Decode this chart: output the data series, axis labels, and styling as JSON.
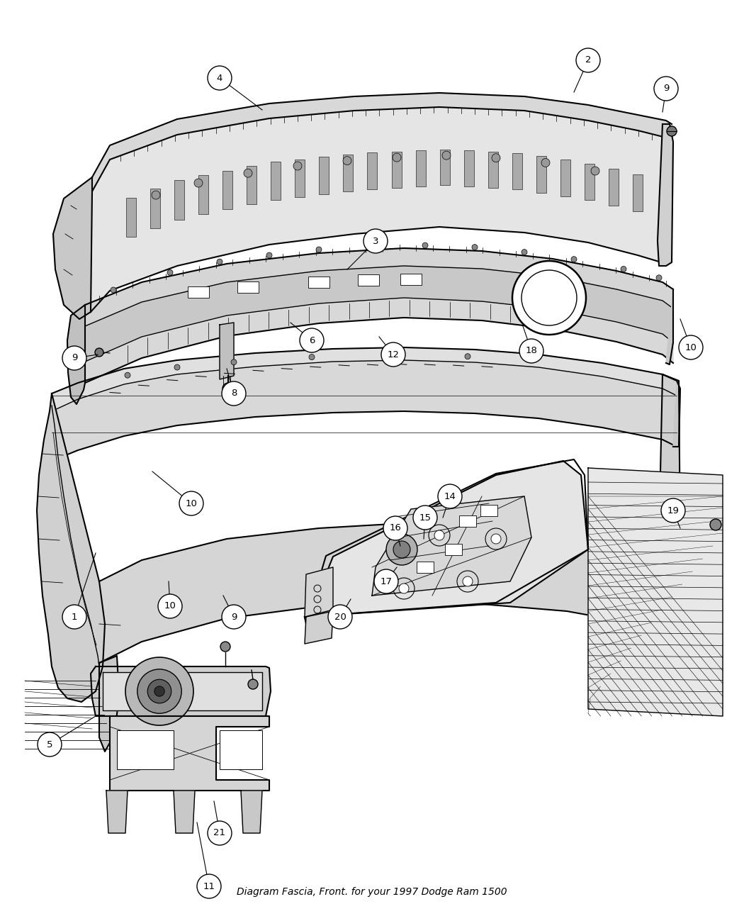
{
  "title": "Diagram Fascia, Front. for your 1997 Dodge Ram 1500",
  "bg": "#ffffff",
  "lc": "#000000",
  "figsize": [
    10.5,
    12.75
  ],
  "dpi": 100,
  "callouts": [
    [
      "1",
      105,
      870,
      135,
      780
    ],
    [
      "2",
      830,
      85,
      810,
      130
    ],
    [
      "3",
      530,
      340,
      490,
      380
    ],
    [
      "4",
      310,
      110,
      370,
      155
    ],
    [
      "5",
      70,
      1050,
      135,
      1010
    ],
    [
      "6",
      440,
      480,
      410,
      455
    ],
    [
      "8",
      330,
      555,
      320,
      520
    ],
    [
      "9",
      940,
      125,
      935,
      158
    ],
    [
      "9",
      105,
      505,
      138,
      500
    ],
    [
      "9",
      330,
      870,
      315,
      840
    ],
    [
      "10",
      975,
      490,
      960,
      450
    ],
    [
      "10",
      270,
      710,
      215,
      665
    ],
    [
      "10",
      240,
      855,
      238,
      820
    ],
    [
      "11",
      295,
      1250,
      278,
      1160
    ],
    [
      "12",
      555,
      500,
      535,
      475
    ],
    [
      "14",
      635,
      700,
      625,
      730
    ],
    [
      "15",
      600,
      730,
      598,
      760
    ],
    [
      "16",
      558,
      745,
      565,
      770
    ],
    [
      "17",
      545,
      820,
      560,
      800
    ],
    [
      "18",
      750,
      495,
      738,
      460
    ],
    [
      "19",
      950,
      720,
      960,
      745
    ],
    [
      "20",
      480,
      870,
      495,
      845
    ],
    [
      "21",
      310,
      1175,
      302,
      1130
    ]
  ]
}
